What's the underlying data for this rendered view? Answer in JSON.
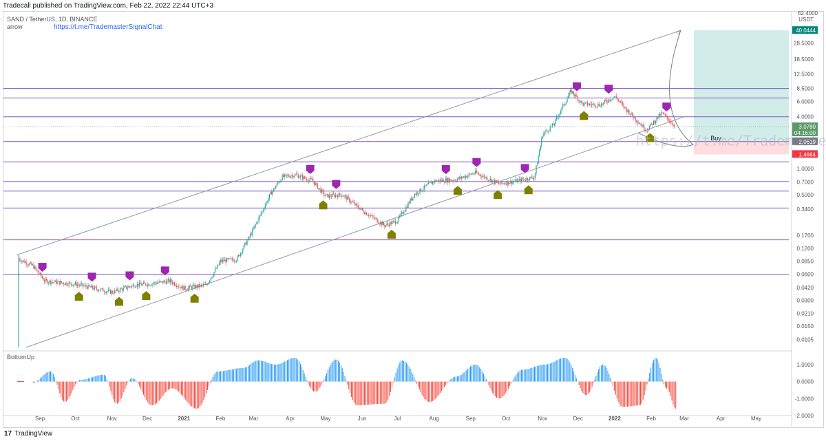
{
  "header": {
    "published": "Tradecall published on TradingView.com, Feb 22, 2022 22:44 UTC+3",
    "symbol": "SAND / TetherUS, 1D, BINANCE",
    "indicator1": "arrow",
    "link": "https://t.me/TrademasterSignalChat",
    "indicator2": "BottomUp"
  },
  "footer": {
    "brand": "TradingView"
  },
  "colors": {
    "up": "#26a69a",
    "down": "#ef5350",
    "level": "#7e57c2",
    "channel": "#9598a1",
    "target_zone": "#b2dfdb",
    "stop_zone": "#ffcdd2",
    "top_marker": "#9c27b0",
    "bottom_marker": "#808000",
    "osc_up": "#2196f3",
    "osc_down": "#f44336"
  },
  "chart_data": [
    {
      "type": "candlestick",
      "title": "SAND / TetherUS, 1D, BINANCE",
      "y_scale": "log",
      "currency": "USDT",
      "ylim": [
        0.0085,
        62.4
      ],
      "y_ticks": [
        62.4,
        28.5,
        18.5,
        12.5,
        8.5,
        6.0,
        4.0,
        2.0619,
        1.4664,
        1.0,
        0.7,
        0.5,
        0.34,
        0.17,
        0.12,
        0.085,
        0.06,
        0.042,
        0.03,
        0.021,
        0.015,
        0.0105
      ],
      "y_tick_labels": [
        "62.4000",
        "28.5000",
        "18.5000",
        "12.5000",
        "8.5000",
        "6.0000",
        "4.0000",
        "2.0619",
        "1.4664",
        "1.0000",
        "0.7000",
        "0.5000",
        "0.3400",
        "0.1700",
        "0.1200",
        "0.0850",
        "0.0600",
        "0.0420",
        "0.0300",
        "0.0210",
        "0.0150",
        "0.0105"
      ],
      "x_labels": [
        "Sep",
        "Oct",
        "Nov",
        "Dec",
        "2021",
        "Feb",
        "Mar",
        "Apr",
        "May",
        "Jun",
        "Jul",
        "Aug",
        "Sep",
        "Oct",
        "Nov",
        "Dec",
        "2022",
        "Feb",
        "Mar",
        "Apr",
        "May"
      ],
      "bold_x_labels": [
        "2021",
        "2022"
      ],
      "price_series": [
        {
          "date": "2020-08-14",
          "price": 0.09
        },
        {
          "date": "2020-08-26",
          "price": 0.075
        },
        {
          "date": "2020-09-05",
          "price": 0.05
        },
        {
          "date": "2020-10-01",
          "price": 0.046
        },
        {
          "date": "2020-11-01",
          "price": 0.037
        },
        {
          "date": "2020-11-20",
          "price": 0.045
        },
        {
          "date": "2020-12-01",
          "price": 0.046
        },
        {
          "date": "2020-12-20",
          "price": 0.05
        },
        {
          "date": "2021-01-01",
          "price": 0.041
        },
        {
          "date": "2021-01-20",
          "price": 0.045
        },
        {
          "date": "2021-02-01",
          "price": 0.085
        },
        {
          "date": "2021-02-15",
          "price": 0.09
        },
        {
          "date": "2021-03-01",
          "price": 0.2
        },
        {
          "date": "2021-03-15",
          "price": 0.5
        },
        {
          "date": "2021-03-25",
          "price": 0.8
        },
        {
          "date": "2021-04-05",
          "price": 0.85
        },
        {
          "date": "2021-04-20",
          "price": 0.72
        },
        {
          "date": "2021-05-01",
          "price": 0.48
        },
        {
          "date": "2021-05-15",
          "price": 0.5
        },
        {
          "date": "2021-06-01",
          "price": 0.33
        },
        {
          "date": "2021-06-20",
          "price": 0.22
        },
        {
          "date": "2021-07-01",
          "price": 0.25
        },
        {
          "date": "2021-07-15",
          "price": 0.5
        },
        {
          "date": "2021-08-01",
          "price": 0.72
        },
        {
          "date": "2021-08-20",
          "price": 0.75
        },
        {
          "date": "2021-09-05",
          "price": 0.9
        },
        {
          "date": "2021-09-25",
          "price": 0.67
        },
        {
          "date": "2021-10-10",
          "price": 0.72
        },
        {
          "date": "2021-10-25",
          "price": 0.8
        },
        {
          "date": "2021-11-01",
          "price": 2.5
        },
        {
          "date": "2021-11-10",
          "price": 3.2
        },
        {
          "date": "2021-11-25",
          "price": 8.0
        },
        {
          "date": "2021-12-05",
          "price": 5.6
        },
        {
          "date": "2021-12-20",
          "price": 5.5
        },
        {
          "date": "2022-01-01",
          "price": 6.9
        },
        {
          "date": "2022-01-10",
          "price": 5.0
        },
        {
          "date": "2022-01-28",
          "price": 2.8
        },
        {
          "date": "2022-02-10",
          "price": 4.4
        },
        {
          "date": "2022-02-22",
          "price": 3.078
        }
      ],
      "horizontal_levels": [
        8.5,
        6.6,
        4.0,
        2.0619,
        1.2,
        0.71,
        0.55,
        0.35,
        0.15,
        0.06
      ],
      "channel_upper": [
        {
          "date": "2020-08-12",
          "price": 0.1
        },
        {
          "date": "2022-02-26",
          "price": 40.0444
        }
      ],
      "channel_lower": [
        {
          "date": "2020-08-20",
          "price": 0.0085
        },
        {
          "date": "2022-03-01",
          "price": 4.0
        }
      ],
      "top_markers": [
        "2020-09-03",
        "2020-10-15",
        "2020-11-16",
        "2020-12-16",
        "2021-04-18",
        "2021-05-10",
        "2021-08-11",
        "2021-09-06",
        "2021-10-17",
        "2021-11-30",
        "2021-12-27",
        "2022-02-14"
      ],
      "bottom_markers": [
        "2020-10-04",
        "2020-11-07",
        "2020-11-30",
        "2021-01-10",
        "2021-04-29",
        "2021-06-26",
        "2021-08-21",
        "2021-09-24",
        "2021-10-20",
        "2021-12-06",
        "2022-01-31"
      ],
      "position": {
        "label": "Buy",
        "entry": 2.0619,
        "target": 40.0444,
        "stop": 1.4664,
        "current": 3.078,
        "current_label": "3.0780",
        "countdown": "04:16:00",
        "target_label": "40.0444",
        "entry_label": "2.0619",
        "stop_label": "1.4664"
      },
      "watermark": "https://t.me/TrademasterFX"
    },
    {
      "type": "bar",
      "title": "BottomUp",
      "ylim": [
        -2.0,
        1.4
      ],
      "y_ticks": [
        1.0,
        0.0,
        -1.0,
        -2.0
      ],
      "y_tick_labels": [
        "1.0000",
        "0.0000",
        "-1.0000",
        "-2.0000"
      ],
      "envelope": [
        {
          "date": "2020-08-12",
          "value": 0.0
        },
        {
          "date": "2020-08-25",
          "value": -0.1
        },
        {
          "date": "2020-09-10",
          "value": 0.6
        },
        {
          "date": "2020-09-22",
          "value": -1.2
        },
        {
          "date": "2020-10-05",
          "value": 0.1
        },
        {
          "date": "2020-10-25",
          "value": 0.4
        },
        {
          "date": "2020-11-05",
          "value": -1.3
        },
        {
          "date": "2020-11-18",
          "value": 0.2
        },
        {
          "date": "2020-12-05",
          "value": -1.4
        },
        {
          "date": "2020-12-22",
          "value": -0.4
        },
        {
          "date": "2021-01-12",
          "value": -1.6
        },
        {
          "date": "2021-01-30",
          "value": 0.6
        },
        {
          "date": "2021-02-20",
          "value": 0.8
        },
        {
          "date": "2021-03-05",
          "value": 1.25
        },
        {
          "date": "2021-03-20",
          "value": 1.0
        },
        {
          "date": "2021-04-05",
          "value": 1.4
        },
        {
          "date": "2021-04-22",
          "value": -0.6
        },
        {
          "date": "2021-05-10",
          "value": 1.3
        },
        {
          "date": "2021-05-28",
          "value": -1.4
        },
        {
          "date": "2021-06-20",
          "value": -1.3
        },
        {
          "date": "2021-07-05",
          "value": 1.25
        },
        {
          "date": "2021-07-28",
          "value": -1.2
        },
        {
          "date": "2021-08-20",
          "value": 0.3
        },
        {
          "date": "2021-09-05",
          "value": 1.0
        },
        {
          "date": "2021-09-25",
          "value": -1.0
        },
        {
          "date": "2021-10-15",
          "value": 0.7
        },
        {
          "date": "2021-11-03",
          "value": 1.0
        },
        {
          "date": "2021-11-20",
          "value": 1.4
        },
        {
          "date": "2021-12-08",
          "value": -0.8
        },
        {
          "date": "2021-12-22",
          "value": 1.0
        },
        {
          "date": "2022-01-08",
          "value": -1.5
        },
        {
          "date": "2022-01-22",
          "value": -1.4
        },
        {
          "date": "2022-02-05",
          "value": 1.4
        },
        {
          "date": "2022-02-14",
          "value": -0.4
        },
        {
          "date": "2022-02-22",
          "value": -1.6
        }
      ]
    }
  ]
}
